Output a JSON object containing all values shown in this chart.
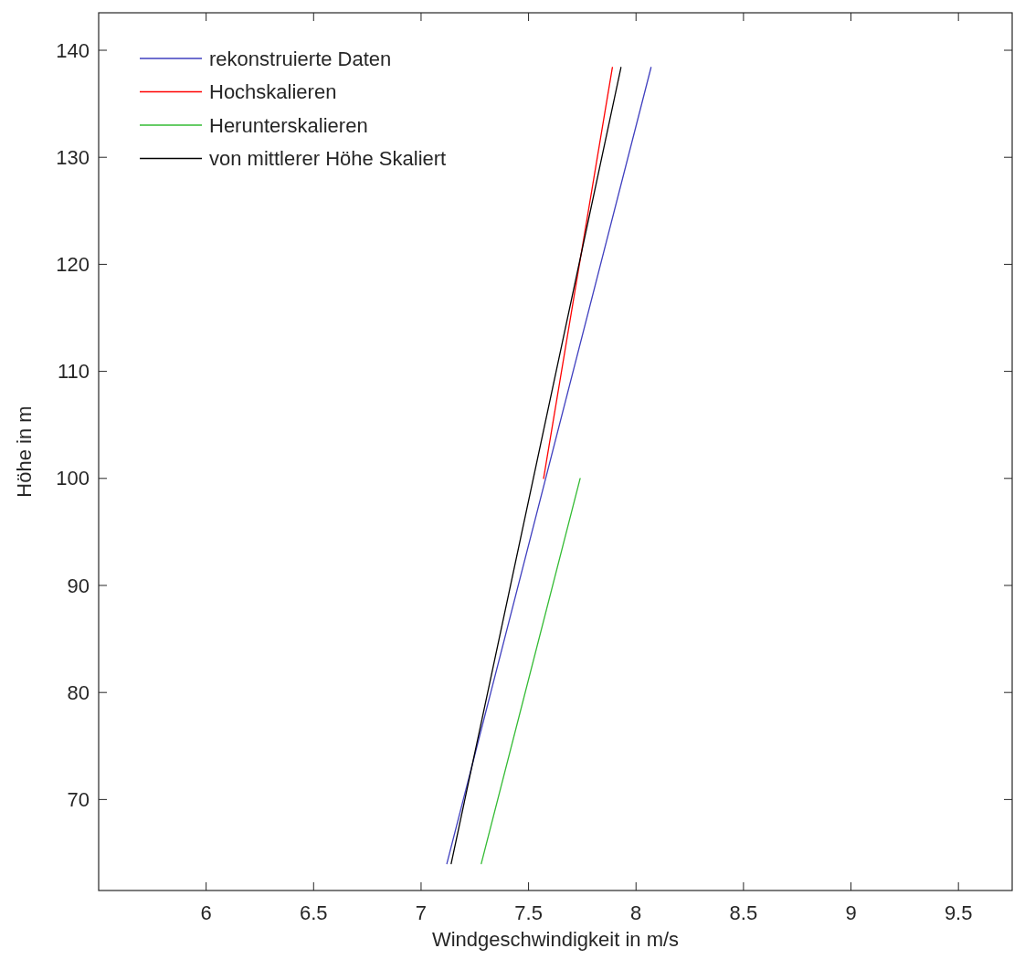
{
  "chart_data": {
    "type": "line",
    "xlabel": "Windgeschwindigkeit in m/s",
    "ylabel": "Höhe in m",
    "xlim": [
      5.5,
      9.75
    ],
    "xticks": [
      6,
      6.5,
      7,
      7.5,
      8,
      8.5,
      9,
      9.5
    ],
    "ylim": [
      61.5,
      143.5
    ],
    "yticks": [
      70,
      80,
      90,
      100,
      110,
      120,
      130,
      140
    ],
    "legend": "top left",
    "grid": false,
    "series": [
      {
        "name": "rekonstruierte Daten",
        "color": "#3f3fbf",
        "x": [
          7.12,
          8.07
        ],
        "values": [
          64,
          138.4
        ]
      },
      {
        "name": "Hochskalieren",
        "color": "#ff0000",
        "x": [
          7.57,
          7.89
        ],
        "values": [
          100,
          138.4
        ]
      },
      {
        "name": "Herunterskalieren",
        "color": "#33bb33",
        "x": [
          7.28,
          7.74
        ],
        "values": [
          64,
          100
        ]
      },
      {
        "name": "von mittlerer Höhe Skaliert",
        "color": "#000000",
        "x": [
          7.14,
          7.93
        ],
        "values": [
          64,
          138.4
        ]
      }
    ]
  }
}
